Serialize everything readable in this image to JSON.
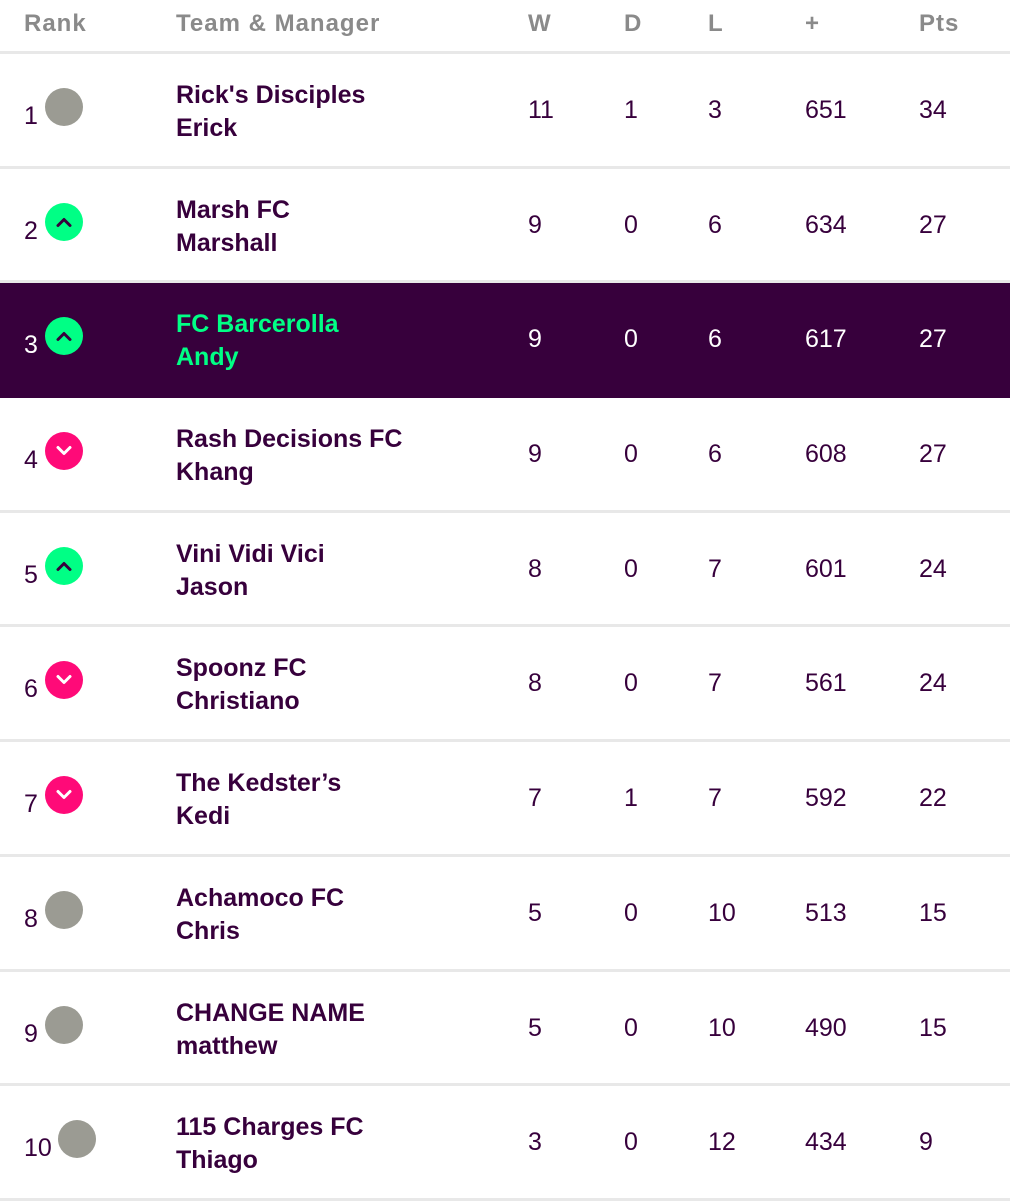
{
  "header": {
    "rank": "Rank",
    "team_manager": "Team & Manager",
    "w": "W",
    "d": "D",
    "l": "L",
    "plus": "+",
    "pts": "Pts"
  },
  "colors": {
    "brand_purple": "#37003c",
    "up_green": "#00ff85",
    "down_pink": "#ff0a78",
    "no_change_gray": "#9b9b93"
  },
  "rows": [
    {
      "rank": "1",
      "movement": "none",
      "team": "Rick's Disciples",
      "manager": "Erick",
      "w": "11",
      "d": "1",
      "l": "3",
      "plus": "651",
      "pts": "34",
      "highlighted": false
    },
    {
      "rank": "2",
      "movement": "up",
      "team": "Marsh FC",
      "manager": "Marshall",
      "w": "9",
      "d": "0",
      "l": "6",
      "plus": "634",
      "pts": "27",
      "highlighted": false
    },
    {
      "rank": "3",
      "movement": "up",
      "team": "FC Barcerolla",
      "manager": "Andy",
      "w": "9",
      "d": "0",
      "l": "6",
      "plus": "617",
      "pts": "27",
      "highlighted": true
    },
    {
      "rank": "4",
      "movement": "down",
      "team": "Rash Decisions FC",
      "manager": "Khang",
      "w": "9",
      "d": "0",
      "l": "6",
      "plus": "608",
      "pts": "27",
      "highlighted": false
    },
    {
      "rank": "5",
      "movement": "up",
      "team": "Vini Vidi Vici",
      "manager": "Jason",
      "w": "8",
      "d": "0",
      "l": "7",
      "plus": "601",
      "pts": "24",
      "highlighted": false
    },
    {
      "rank": "6",
      "movement": "down",
      "team": "Spoonz FC",
      "manager": "Christiano",
      "w": "8",
      "d": "0",
      "l": "7",
      "plus": "561",
      "pts": "24",
      "highlighted": false
    },
    {
      "rank": "7",
      "movement": "down",
      "team": "The Kedster’s",
      "manager": "Kedi",
      "w": "7",
      "d": "1",
      "l": "7",
      "plus": "592",
      "pts": "22",
      "highlighted": false
    },
    {
      "rank": "8",
      "movement": "none",
      "team": "Achamoco FC",
      "manager": "Chris",
      "w": "5",
      "d": "0",
      "l": "10",
      "plus": "513",
      "pts": "15",
      "highlighted": false
    },
    {
      "rank": "9",
      "movement": "none",
      "team": "CHANGE NAME",
      "manager": "matthew",
      "w": "5",
      "d": "0",
      "l": "10",
      "plus": "490",
      "pts": "15",
      "highlighted": false
    },
    {
      "rank": "10",
      "movement": "none",
      "team": "115 Charges FC",
      "manager": "Thiago",
      "w": "3",
      "d": "0",
      "l": "12",
      "plus": "434",
      "pts": "9",
      "highlighted": false
    }
  ]
}
